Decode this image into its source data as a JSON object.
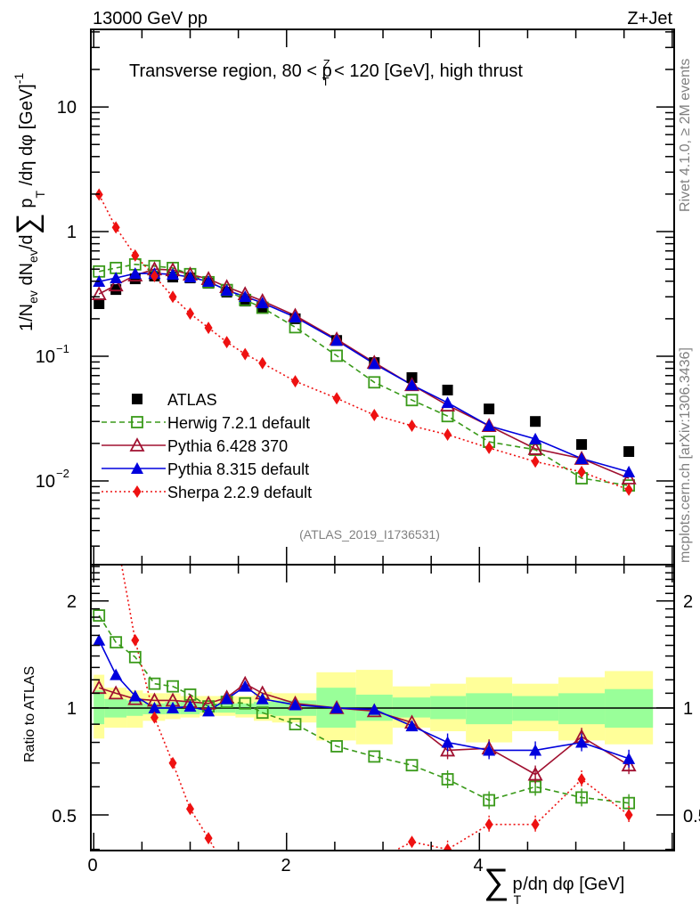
{
  "header": {
    "left": "13000 GeV pp",
    "right": "Z+Jet"
  },
  "side_text": {
    "rivet": "Rivet 4.1.0, ≥ 2M events",
    "mcplots": "mcplots.cern.ch [arXiv:1306.3436]"
  },
  "chart_data": [
    {
      "type": "line",
      "panel": "main",
      "title": "Transverse region, 80 < p_T^Z < 120 [GeV], high thrust",
      "title_parts": {
        "pre": "Transverse region, 80 < p",
        "sup": "Z",
        "sub": "T",
        "post": " < 120 [GeV], high thrust"
      },
      "analysis_label": "(ATLAS_2019_I1736531)",
      "xlabel": "∑ p_T /dη dφ [GeV]",
      "xlabel_parts": {
        "sum": "∑",
        "p": "p",
        "sub": "T",
        "post": "/dη dφ [GeV]"
      },
      "ylabel": "1/N_ev dN_ev/d∑ p_T /dη dφ [GeV]^-1",
      "ylabel_parts": {
        "a": "1/N",
        "a_sub": "ev",
        "b": " dN",
        "b_sub": "ev",
        "c": "/d",
        "sum": "∑",
        "d": " p",
        "d_sub": "T",
        "e": " /dη dφ  [GeV]",
        "e_sup": "-1"
      },
      "xlim": [
        -0.03,
        6.02
      ],
      "ylim": [
        0.00213,
        41.9
      ],
      "yscale": "log",
      "xticks": [
        0,
        2,
        4
      ],
      "xtick_labels": [
        "0",
        "2",
        "4"
      ],
      "yticks": [
        10,
        1,
        0.1,
        0.01
      ],
      "ytick_labels": [
        {
          "base": "10",
          "exp": ""
        },
        {
          "base": "1",
          "exp": ""
        },
        {
          "base": "10",
          "exp": "−1"
        },
        {
          "base": "10",
          "exp": "−2"
        }
      ],
      "legend_position": "center-left",
      "x": [
        0.055,
        0.23,
        0.43,
        0.63,
        0.82,
        1.0,
        1.19,
        1.38,
        1.57,
        1.75,
        2.09,
        2.52,
        2.91,
        3.3,
        3.67,
        4.1,
        4.58,
        5.06,
        5.55
      ],
      "series": [
        {
          "name": "ATLAS",
          "color": "#000000",
          "marker": "square-filled",
          "line": "none",
          "values": [
            0.264,
            0.343,
            0.418,
            0.44,
            0.432,
            0.425,
            0.385,
            0.327,
            0.277,
            0.247,
            0.2,
            0.134,
            0.089,
            0.0675,
            0.0536,
            0.0378,
            0.03,
            0.0196,
            0.0172
          ]
        },
        {
          "name": "Herwig 7.2.1 default",
          "color": "#3a9a1a",
          "marker": "square-open",
          "line": "dashed",
          "values": [
            0.479,
            0.511,
            0.546,
            0.529,
            0.511,
            0.456,
            0.393,
            0.34,
            0.283,
            0.245,
            0.171,
            0.101,
            0.0618,
            0.0445,
            0.0331,
            0.0206,
            0.0178,
            0.0105,
            0.0092
          ]
        },
        {
          "name": "Pythia 6.428 370",
          "color": "#a01030",
          "marker": "triangle-open",
          "line": "solid",
          "values": [
            0.316,
            0.372,
            0.446,
            0.5,
            0.492,
            0.454,
            0.418,
            0.36,
            0.316,
            0.278,
            0.212,
            0.137,
            0.089,
            0.0589,
            0.0404,
            0.0277,
            0.0181,
            0.0151,
            0.0105
          ]
        },
        {
          "name": "Pythia 8.315 default",
          "color": "#0000dd",
          "marker": "triangle-filled",
          "line": "solid",
          "values": [
            0.398,
            0.425,
            0.461,
            0.461,
            0.454,
            0.432,
            0.398,
            0.338,
            0.301,
            0.268,
            0.206,
            0.134,
            0.087,
            0.0589,
            0.0424,
            0.0277,
            0.0217,
            0.0151,
            0.0118
          ]
        },
        {
          "name": "Sherpa 2.2.9 default",
          "color": "#ee1111",
          "marker": "diamond-filled",
          "line": "dotted",
          "values": [
            1.98,
            1.08,
            0.643,
            0.44,
            0.3,
            0.22,
            0.169,
            0.13,
            0.104,
            0.088,
            0.063,
            0.046,
            0.0338,
            0.0277,
            0.0235,
            0.0184,
            0.0143,
            0.0118,
            0.0085
          ]
        }
      ]
    },
    {
      "type": "line",
      "panel": "ratio",
      "ylabel": "Ratio to ATLAS",
      "xlim": [
        -0.03,
        6.02
      ],
      "ylim": [
        0.397,
        2.53
      ],
      "yscale": "log",
      "yticks": [
        2,
        1,
        0.5
      ],
      "ytick_labels": [
        "2",
        "1",
        "0.5"
      ],
      "reference_line": 1,
      "x": [
        0.055,
        0.23,
        0.43,
        0.63,
        0.82,
        1.0,
        1.19,
        1.38,
        1.57,
        1.75,
        2.09,
        2.52,
        2.91,
        3.3,
        3.67,
        4.1,
        4.58,
        5.06,
        5.55
      ],
      "bin_edges": [
        0,
        0.11,
        0.34,
        0.51,
        0.74,
        0.9,
        1.1,
        1.29,
        1.47,
        1.66,
        1.85,
        2.31,
        2.72,
        3.1,
        3.49,
        3.86,
        4.34,
        4.82,
        5.3,
        5.8
      ],
      "bands": {
        "stat_color": "#99ff99",
        "total_color": "#ffff99",
        "stat_up": [
          1.12,
          1.06,
          1.05,
          1.03,
          1.04,
          1.04,
          1.03,
          1.03,
          1.03,
          1.04,
          1.05,
          1.14,
          1.09,
          1.07,
          1.08,
          1.1,
          1.08,
          1.1,
          1.13
        ],
        "stat_down": [
          0.9,
          0.94,
          0.95,
          0.96,
          0.96,
          0.96,
          0.97,
          0.97,
          0.96,
          0.96,
          0.95,
          0.88,
          0.92,
          0.94,
          0.93,
          0.9,
          0.92,
          0.9,
          0.88
        ],
        "tot_up": [
          1.24,
          1.14,
          1.12,
          1.1,
          1.1,
          1.08,
          1.08,
          1.08,
          1.08,
          1.11,
          1.1,
          1.26,
          1.28,
          1.15,
          1.17,
          1.22,
          1.17,
          1.22,
          1.27
        ],
        "tot_down": [
          0.82,
          0.88,
          0.88,
          0.92,
          0.93,
          0.94,
          0.95,
          0.95,
          0.94,
          0.92,
          0.91,
          0.81,
          0.79,
          0.88,
          0.86,
          0.8,
          0.86,
          0.81,
          0.79
        ]
      },
      "series": [
        {
          "name": "Herwig 7.2.1 default",
          "color": "#3a9a1a",
          "marker": "square-open",
          "line": "dashed",
          "values": [
            1.82,
            1.53,
            1.39,
            1.17,
            1.15,
            1.09,
            1.01,
            1.04,
            1.03,
            0.97,
            0.9,
            0.78,
            0.73,
            0.69,
            0.63,
            0.55,
            0.6,
            0.56,
            0.54
          ]
        },
        {
          "name": "Pythia 6.428 370",
          "color": "#a01030",
          "marker": "triangle-open",
          "line": "solid",
          "values": [
            1.14,
            1.1,
            1.06,
            1.05,
            1.05,
            1.04,
            1.03,
            1.07,
            1.17,
            1.1,
            1.03,
            1.0,
            0.98,
            0.91,
            0.76,
            0.77,
            0.65,
            0.83,
            0.69
          ]
        },
        {
          "name": "Pythia 8.315 default",
          "color": "#0000dd",
          "marker": "triangle-filled",
          "line": "solid",
          "values": [
            1.55,
            1.24,
            1.08,
            1.0,
            1.0,
            1.01,
            0.98,
            1.06,
            1.15,
            1.06,
            1.02,
            1.0,
            0.99,
            0.89,
            0.8,
            0.76,
            0.76,
            0.8,
            0.72
          ]
        },
        {
          "name": "Sherpa 2.2.9 default",
          "color": "#ee1111",
          "marker": "diamond-filled",
          "line": "dotted",
          "values": [
            7.5,
            3.1,
            1.55,
            0.94,
            0.7,
            0.52,
            0.43,
            0.35,
            0.3,
            0.26,
            0.3,
            0.31,
            0.37,
            0.42,
            0.4,
            0.47,
            0.47,
            0.63,
            0.5
          ]
        }
      ]
    }
  ]
}
